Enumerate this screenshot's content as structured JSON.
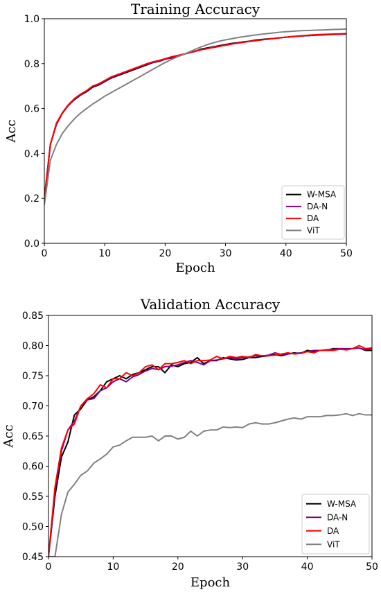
{
  "chart_data": [
    {
      "type": "line",
      "title": "Training Accuracy",
      "xlabel": "Epoch",
      "ylabel": "Acc",
      "xlim": [
        0,
        50
      ],
      "ylim": [
        0.0,
        1.0
      ],
      "xticks": [
        "0",
        "10",
        "20",
        "30",
        "40",
        "50"
      ],
      "yticks": [
        "0.0",
        "0.2",
        "0.4",
        "0.6",
        "0.8",
        "1.0"
      ],
      "grid": false,
      "legend_position": "lower-right",
      "x": [
        0,
        1,
        2,
        3,
        4,
        5,
        6,
        7,
        8,
        9,
        10,
        11,
        12,
        13,
        14,
        15,
        16,
        17,
        18,
        19,
        20,
        21,
        22,
        23,
        24,
        25,
        26,
        27,
        28,
        29,
        30,
        31,
        32,
        33,
        34,
        35,
        36,
        37,
        38,
        39,
        40,
        41,
        42,
        43,
        44,
        45,
        46,
        47,
        48,
        49,
        50
      ],
      "series": [
        {
          "name": "W-MSA",
          "color": "#000000",
          "values": [
            0.2,
            0.44,
            0.53,
            0.58,
            0.615,
            0.64,
            0.66,
            0.675,
            0.695,
            0.705,
            0.72,
            0.735,
            0.745,
            0.755,
            0.765,
            0.775,
            0.785,
            0.795,
            0.805,
            0.81,
            0.82,
            0.825,
            0.835,
            0.84,
            0.85,
            0.855,
            0.865,
            0.87,
            0.875,
            0.88,
            0.885,
            0.89,
            0.893,
            0.897,
            0.9,
            0.905,
            0.908,
            0.91,
            0.912,
            0.915,
            0.918,
            0.92,
            0.922,
            0.924,
            0.925,
            0.927,
            0.928,
            0.929,
            0.93,
            0.931,
            0.932
          ]
        },
        {
          "name": "DA-N",
          "color": "#800080",
          "values": [
            0.2,
            0.44,
            0.53,
            0.58,
            0.615,
            0.642,
            0.662,
            0.678,
            0.698,
            0.708,
            0.722,
            0.738,
            0.748,
            0.758,
            0.768,
            0.778,
            0.788,
            0.798,
            0.806,
            0.812,
            0.82,
            0.827,
            0.835,
            0.842,
            0.848,
            0.855,
            0.862,
            0.868,
            0.873,
            0.878,
            0.883,
            0.888,
            0.892,
            0.896,
            0.9,
            0.903,
            0.906,
            0.909,
            0.912,
            0.915,
            0.918,
            0.92,
            0.922,
            0.924,
            0.926,
            0.928,
            0.929,
            0.93,
            0.931,
            0.932,
            0.933
          ]
        },
        {
          "name": "DA",
          "color": "#ff0000",
          "values": [
            0.2,
            0.44,
            0.535,
            0.582,
            0.618,
            0.645,
            0.664,
            0.68,
            0.7,
            0.71,
            0.725,
            0.74,
            0.75,
            0.76,
            0.77,
            0.78,
            0.79,
            0.8,
            0.808,
            0.814,
            0.822,
            0.83,
            0.836,
            0.842,
            0.849,
            0.856,
            0.862,
            0.867,
            0.872,
            0.877,
            0.882,
            0.887,
            0.891,
            0.895,
            0.899,
            0.902,
            0.906,
            0.909,
            0.912,
            0.915,
            0.918,
            0.921,
            0.923,
            0.925,
            0.927,
            0.929,
            0.93,
            0.931,
            0.932,
            0.933,
            0.934
          ]
        },
        {
          "name": "ViT",
          "color": "#808080",
          "values": [
            0.17,
            0.37,
            0.44,
            0.49,
            0.525,
            0.555,
            0.58,
            0.6,
            0.62,
            0.637,
            0.655,
            0.67,
            0.685,
            0.7,
            0.715,
            0.73,
            0.745,
            0.76,
            0.775,
            0.79,
            0.805,
            0.818,
            0.83,
            0.84,
            0.852,
            0.864,
            0.875,
            0.885,
            0.893,
            0.9,
            0.906,
            0.911,
            0.916,
            0.92,
            0.924,
            0.928,
            0.931,
            0.934,
            0.937,
            0.94,
            0.942,
            0.944,
            0.946,
            0.947,
            0.948,
            0.949,
            0.95,
            0.951,
            0.952,
            0.953,
            0.954
          ]
        }
      ]
    },
    {
      "type": "line",
      "title": "Validation Accuracy",
      "xlabel": "Epoch",
      "ylabel": "Acc",
      "xlim": [
        0,
        50
      ],
      "ylim": [
        0.45,
        0.85
      ],
      "xticks": [
        "0",
        "10",
        "20",
        "30",
        "40",
        "50"
      ],
      "yticks": [
        "0.45",
        "0.50",
        "0.55",
        "0.60",
        "0.65",
        "0.70",
        "0.75",
        "0.80",
        "0.85"
      ],
      "grid": false,
      "legend_position": "lower-right",
      "x": [
        0,
        1,
        2,
        3,
        4,
        5,
        6,
        7,
        8,
        9,
        10,
        11,
        12,
        13,
        14,
        15,
        16,
        17,
        18,
        19,
        20,
        21,
        22,
        23,
        24,
        25,
        26,
        27,
        28,
        29,
        30,
        31,
        32,
        33,
        34,
        35,
        36,
        37,
        38,
        39,
        40,
        41,
        42,
        43,
        44,
        45,
        46,
        47,
        48,
        49,
        50
      ],
      "series": [
        {
          "name": "W-MSA",
          "color": "#000000",
          "values": [
            0.45,
            0.55,
            0.615,
            0.64,
            0.685,
            0.695,
            0.71,
            0.715,
            0.725,
            0.74,
            0.745,
            0.75,
            0.745,
            0.752,
            0.755,
            0.76,
            0.765,
            0.765,
            0.755,
            0.768,
            0.765,
            0.77,
            0.772,
            0.78,
            0.77,
            0.775,
            0.775,
            0.78,
            0.778,
            0.776,
            0.777,
            0.78,
            0.78,
            0.782,
            0.783,
            0.785,
            0.783,
            0.786,
            0.788,
            0.787,
            0.792,
            0.79,
            0.792,
            0.792,
            0.795,
            0.795,
            0.793,
            0.795,
            0.796,
            0.792,
            0.792
          ]
        },
        {
          "name": "DA-N",
          "color": "#800080",
          "values": [
            0.45,
            0.56,
            0.625,
            0.66,
            0.675,
            0.7,
            0.71,
            0.712,
            0.725,
            0.73,
            0.74,
            0.745,
            0.74,
            0.748,
            0.752,
            0.758,
            0.762,
            0.76,
            0.765,
            0.766,
            0.768,
            0.772,
            0.775,
            0.772,
            0.768,
            0.775,
            0.776,
            0.778,
            0.78,
            0.778,
            0.78,
            0.781,
            0.783,
            0.783,
            0.784,
            0.788,
            0.785,
            0.786,
            0.787,
            0.788,
            0.79,
            0.792,
            0.792,
            0.793,
            0.794,
            0.795,
            0.795,
            0.795,
            0.796,
            0.793,
            0.795
          ]
        },
        {
          "name": "DA",
          "color": "#ff0000",
          "values": [
            0.45,
            0.565,
            0.63,
            0.66,
            0.67,
            0.7,
            0.712,
            0.72,
            0.735,
            0.73,
            0.745,
            0.745,
            0.755,
            0.75,
            0.755,
            0.765,
            0.768,
            0.76,
            0.77,
            0.77,
            0.772,
            0.775,
            0.77,
            0.775,
            0.775,
            0.776,
            0.782,
            0.778,
            0.782,
            0.78,
            0.782,
            0.78,
            0.785,
            0.783,
            0.783,
            0.784,
            0.786,
            0.788,
            0.786,
            0.787,
            0.79,
            0.788,
            0.792,
            0.792,
            0.792,
            0.794,
            0.793,
            0.795,
            0.8,
            0.795,
            0.796
          ]
        },
        {
          "name": "ViT",
          "color": "#808080",
          "values": [
            0.45,
            0.45,
            0.52,
            0.557,
            0.57,
            0.585,
            0.592,
            0.605,
            0.612,
            0.62,
            0.632,
            0.635,
            0.642,
            0.648,
            0.648,
            0.648,
            0.65,
            0.642,
            0.65,
            0.65,
            0.645,
            0.648,
            0.658,
            0.65,
            0.658,
            0.66,
            0.66,
            0.665,
            0.664,
            0.665,
            0.664,
            0.67,
            0.672,
            0.67,
            0.67,
            0.672,
            0.675,
            0.678,
            0.68,
            0.678,
            0.682,
            0.682,
            0.682,
            0.684,
            0.684,
            0.685,
            0.687,
            0.684,
            0.687,
            0.685,
            0.685
          ]
        }
      ]
    }
  ]
}
